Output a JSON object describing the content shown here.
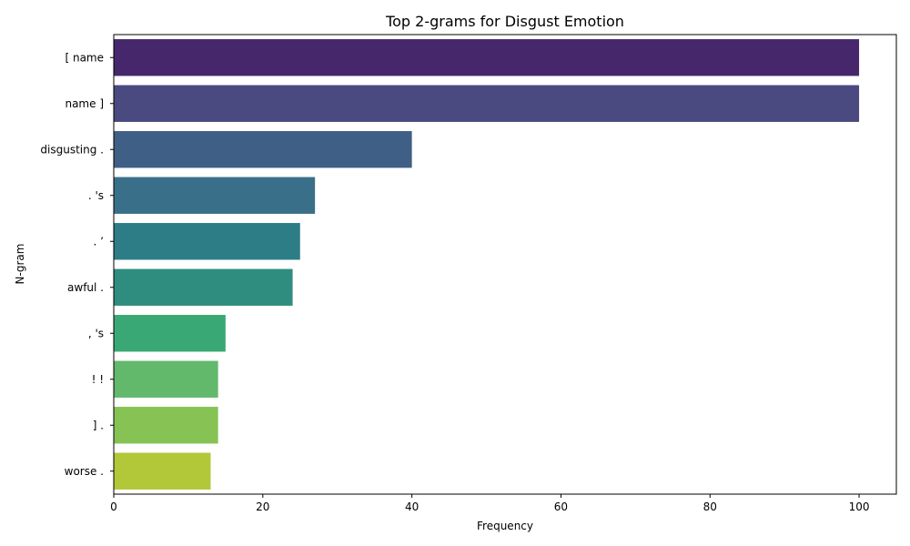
{
  "chart_data": {
    "type": "bar",
    "orientation": "horizontal",
    "title": "Top 2-grams for Disgust Emotion",
    "xlabel": "Frequency",
    "ylabel": "N-gram",
    "categories": [
      "[ name",
      "name ]",
      "disgusting .",
      ". 's",
      ". ’",
      "awful .",
      ", 's",
      "! !",
      "] .",
      "worse ."
    ],
    "values": [
      100,
      100,
      40,
      27,
      25,
      24,
      15,
      14,
      14,
      13
    ],
    "colors": [
      "#46276b",
      "#4a4a80",
      "#405f86",
      "#3a6f89",
      "#2d7d87",
      "#2f8d7f",
      "#3aa874",
      "#62b96c",
      "#86c254",
      "#b2c838"
    ],
    "xlim": [
      0,
      105
    ],
    "xticks": [
      0,
      20,
      40,
      60,
      80,
      100
    ],
    "grid": false,
    "legend": "none"
  }
}
